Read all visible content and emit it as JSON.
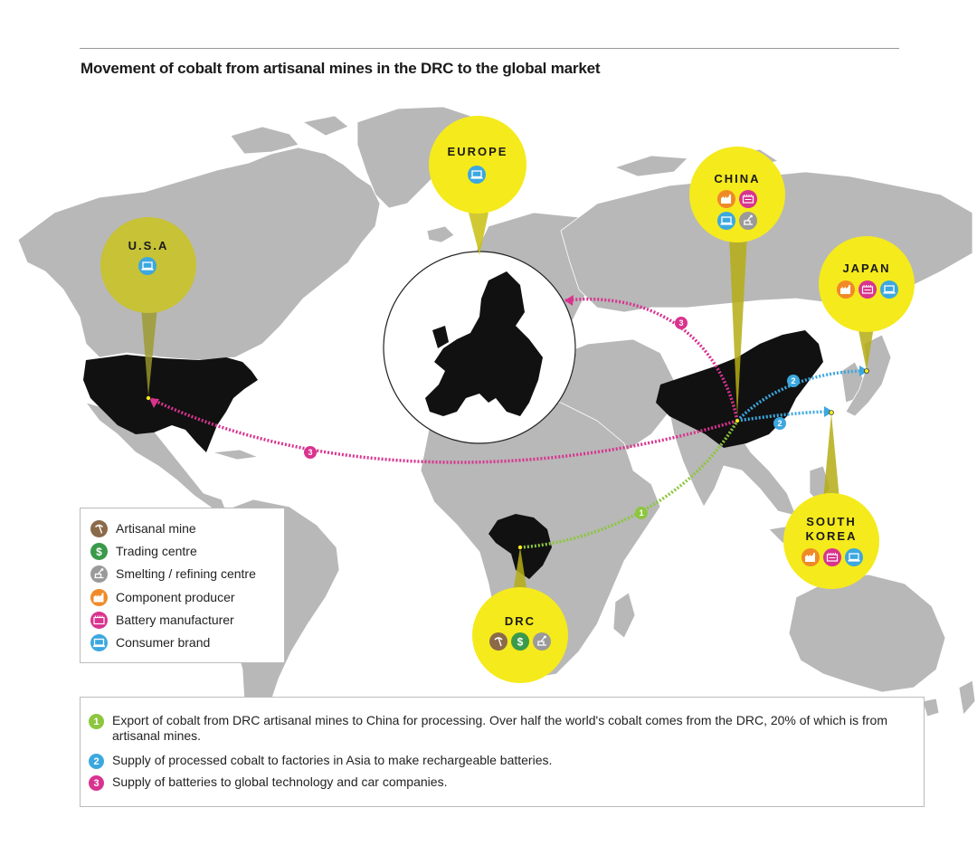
{
  "title": "Movement of cobalt from artisanal mines in the DRC to the global market",
  "regions": {
    "europe": {
      "label": "EUROPE",
      "icons": [
        "laptop-icon"
      ]
    },
    "usa": {
      "label": "U.S.A",
      "icons": [
        "laptop-icon"
      ]
    },
    "china": {
      "label": "CHINA",
      "icons": [
        "factory-icon",
        "battery-icon",
        "laptop-icon",
        "smelter-icon"
      ]
    },
    "japan": {
      "label": "JAPAN",
      "icons": [
        "factory-icon",
        "battery-icon",
        "laptop-icon"
      ]
    },
    "south_korea": {
      "label_line1": "SOUTH",
      "label_line2": "KOREA",
      "icons": [
        "factory-icon",
        "battery-icon",
        "laptop-icon"
      ]
    },
    "drc": {
      "label": "DRC",
      "icons": [
        "pickaxe-icon",
        "dollar-icon",
        "smelter-icon"
      ]
    }
  },
  "routes": [
    {
      "step": "1",
      "from": "DRC",
      "to": "CHINA"
    },
    {
      "step": "2",
      "from": "CHINA",
      "to": "JAPAN"
    },
    {
      "step": "2",
      "from": "CHINA",
      "to": "SOUTH KOREA"
    },
    {
      "step": "3",
      "from": "CHINA",
      "to": "EUROPE"
    },
    {
      "step": "3",
      "from": "CHINA",
      "to": "U.S.A"
    }
  ],
  "legend": [
    {
      "label": "Artisanal mine",
      "color": "#8b6a4a",
      "icon": "pickaxe-icon"
    },
    {
      "label": "Trading centre",
      "color": "#3a9a4a",
      "icon": "dollar-icon"
    },
    {
      "label": "Smelting / refining centre",
      "color": "#9a9a9a",
      "icon": "smelter-icon"
    },
    {
      "label": "Component producer",
      "color": "#f08a28",
      "icon": "factory-icon"
    },
    {
      "label": "Battery manufacturer",
      "color": "#d9338f",
      "icon": "battery-icon"
    },
    {
      "label": "Consumer brand",
      "color": "#3ca8e0",
      "icon": "laptop-icon"
    }
  ],
  "notes": [
    {
      "num": "1",
      "color": "#8dc63f",
      "text": "Export of cobalt from DRC artisanal mines to China for processing. Over half the world's cobalt comes from the DRC, 20% of which is from artisanal mines."
    },
    {
      "num": "2",
      "color": "#3ca8e0",
      "text": "Supply of processed cobalt to factories in Asia to make rechargeable batteries."
    },
    {
      "num": "3",
      "color": "#d9338f",
      "text": "Supply of batteries to global technology and car companies."
    }
  ],
  "colors": {
    "land": "#b8b8b8",
    "highlight_country": "#111111",
    "bubble": "#f5ea1c",
    "route_1": "#8dc63f",
    "route_2": "#3ca8e0",
    "route_3": "#d9338f"
  }
}
